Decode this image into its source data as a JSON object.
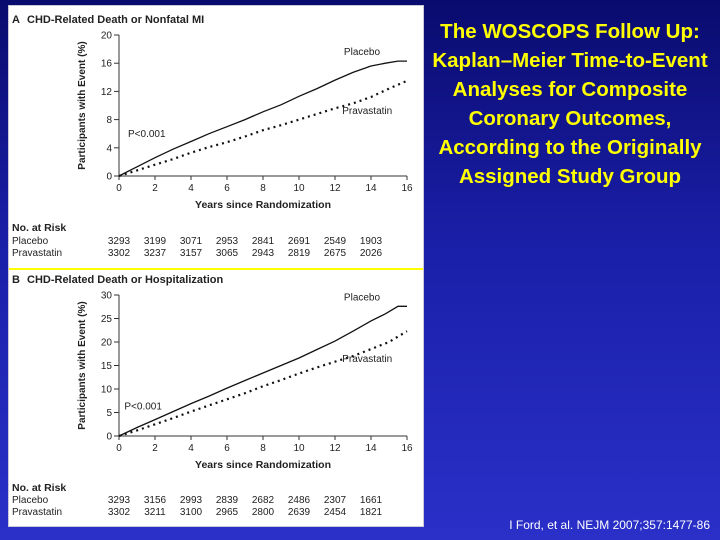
{
  "slide": {
    "title": "The WOSCOPS Follow Up: Kaplan–Meier Time-to-Event Analyses for Composite Coronary Outcomes, According to the Originally Assigned Study Group",
    "citation": "I Ford, et al. NEJM 2007;357:1477-86",
    "colors": {
      "background": "#1a1fa8",
      "title": "#ffff00",
      "citation": "#ffffff",
      "separator": "#ffff00"
    }
  },
  "chart_data": [
    {
      "type": "line",
      "panel": "A",
      "title": "CHD-Related Death or Nonfatal MI",
      "xlabel": "Years since Randomization",
      "ylabel": "Participants with Event (%)",
      "xlim": [
        0,
        16
      ],
      "ylim": [
        0,
        20
      ],
      "xticks": [
        0,
        2,
        4,
        6,
        8,
        10,
        12,
        14,
        16
      ],
      "yticks": [
        0,
        4,
        8,
        12,
        16,
        20
      ],
      "annotation": "P<0.001",
      "series": [
        {
          "name": "Placebo",
          "style": "solid",
          "x": [
            0,
            1,
            2,
            3,
            4,
            5,
            6,
            7,
            8,
            9,
            10,
            11,
            12,
            13,
            14,
            14.8,
            15.5,
            16
          ],
          "y": [
            0,
            1.3,
            2.6,
            3.8,
            4.9,
            6.0,
            7.0,
            8.0,
            9.1,
            10.1,
            11.3,
            12.4,
            13.6,
            14.7,
            15.6,
            16.0,
            16.3,
            16.3
          ]
        },
        {
          "name": "Pravastatin",
          "style": "dotted",
          "x": [
            0,
            1,
            2,
            3,
            4,
            5,
            6,
            7,
            8,
            9,
            10,
            11,
            12,
            13,
            14,
            15,
            16
          ],
          "y": [
            0,
            0.8,
            1.6,
            2.4,
            3.3,
            4.1,
            4.8,
            5.6,
            6.5,
            7.2,
            8.0,
            8.8,
            9.6,
            10.3,
            11.2,
            12.4,
            13.5
          ]
        }
      ],
      "at_risk": {
        "heading": "No. at Risk",
        "rows": [
          {
            "label": "Placebo",
            "values": [
              "3293",
              "3199",
              "3071",
              "2953",
              "2841",
              "2691",
              "2549",
              "1903"
            ]
          },
          {
            "label": "Pravastatin",
            "values": [
              "3302",
              "3237",
              "3157",
              "3065",
              "2943",
              "2819",
              "2675",
              "2026"
            ]
          }
        ]
      }
    },
    {
      "type": "line",
      "panel": "B",
      "title": "CHD-Related Death or Hospitalization",
      "xlabel": "Years since Randomization",
      "ylabel": "Participants with Event (%)",
      "xlim": [
        0,
        16
      ],
      "ylim": [
        0,
        30
      ],
      "xticks": [
        0,
        2,
        4,
        6,
        8,
        10,
        12,
        14,
        16
      ],
      "yticks": [
        0,
        5,
        10,
        15,
        20,
        25,
        30
      ],
      "annotation": "P<0.001",
      "series": [
        {
          "name": "Placebo",
          "style": "solid",
          "x": [
            0,
            1,
            2,
            3,
            4,
            5,
            6,
            7,
            8,
            9,
            10,
            11,
            12,
            13,
            14,
            14.8,
            15.5,
            16
          ],
          "y": [
            0,
            1.8,
            3.5,
            5.2,
            6.9,
            8.5,
            10.2,
            11.8,
            13.4,
            15.0,
            16.6,
            18.4,
            20.2,
            22.3,
            24.5,
            26.0,
            27.6,
            27.6
          ]
        },
        {
          "name": "Pravastatin",
          "style": "dotted",
          "x": [
            0,
            1,
            2,
            3,
            4,
            5,
            6,
            7,
            8,
            9,
            10,
            11,
            12,
            13,
            14,
            15,
            16
          ],
          "y": [
            0,
            1.2,
            2.5,
            3.8,
            5.2,
            6.5,
            7.8,
            9.1,
            10.6,
            11.9,
            13.3,
            14.6,
            15.8,
            17.0,
            18.5,
            20.0,
            22.3
          ]
        }
      ],
      "at_risk": {
        "heading": "No. at Risk",
        "rows": [
          {
            "label": "Placebo",
            "values": [
              "3293",
              "3156",
              "2993",
              "2839",
              "2682",
              "2486",
              "2307",
              "1661"
            ]
          },
          {
            "label": "Pravastatin",
            "values": [
              "3302",
              "3211",
              "3100",
              "2965",
              "2800",
              "2639",
              "2454",
              "1821"
            ]
          }
        ]
      }
    }
  ]
}
